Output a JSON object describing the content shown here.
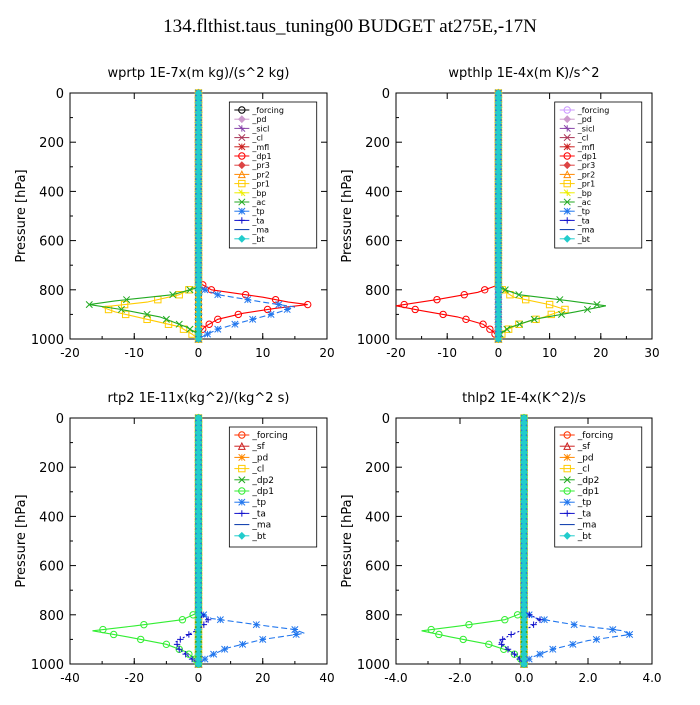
{
  "figure": {
    "title": "134.flthist.taus_tuning00  BUDGET at275E,-17N"
  },
  "chart_data": [
    {
      "type": "line",
      "title": "wprtp   1E-7x(m kg)/(s^2 kg)",
      "ylabel": "Pressure [hPa]",
      "xlim": [
        -20,
        20
      ],
      "ylim": [
        1000,
        0
      ],
      "xticks": [
        -20,
        -10,
        0,
        10,
        20
      ],
      "xtick_labels": [
        "-20",
        "-10",
        "0",
        "10",
        "20"
      ],
      "yticks": [
        0,
        200,
        400,
        600,
        800,
        1000
      ],
      "ytick_labels": [
        "0",
        "200",
        "400",
        "600",
        "800",
        "1000"
      ],
      "legend": "top-right",
      "legend_entries": [
        "_forcing",
        "_pd",
        "_sicl",
        "_cl",
        "_mfl",
        "_dp1",
        "_pr3",
        "_pr2",
        "_pr1",
        "_bp",
        "_ac",
        "_tp",
        "_ta",
        "_ma",
        "_bt"
      ],
      "series": [
        {
          "name": "_forcing",
          "color": "#000000",
          "marker": "circle",
          "y": [
            0,
            1000
          ],
          "x": [
            0,
            0
          ]
        },
        {
          "name": "_pd",
          "color": "#cc99cc",
          "marker": "diamond",
          "y": [
            0,
            1000
          ],
          "x": [
            0,
            0
          ]
        },
        {
          "name": "_sicl",
          "color": "#8844aa",
          "marker": "cross",
          "y": [
            0,
            1000
          ],
          "x": [
            0,
            0
          ]
        },
        {
          "name": "_cl",
          "color": "#aa3355",
          "marker": "x",
          "y": [
            0,
            1000
          ],
          "x": [
            0,
            0
          ]
        },
        {
          "name": "_mfl",
          "color": "#cc2222",
          "marker": "star",
          "y": [
            0,
            1000
          ],
          "x": [
            0,
            0
          ]
        },
        {
          "name": "_dp1",
          "color": "#ff0000",
          "marker": "circle",
          "y": [
            0,
            770,
            800,
            830,
            850,
            860,
            875,
            895,
            920,
            950,
            980,
            1000
          ],
          "x": [
            0,
            0,
            2,
            10,
            14,
            17,
            12,
            7,
            3,
            1,
            0,
            0
          ]
        },
        {
          "name": "_pr3",
          "color": "#dd4444",
          "marker": "diamond",
          "y": [
            0,
            1000
          ],
          "x": [
            0,
            0
          ]
        },
        {
          "name": "_pr2",
          "color": "#ff8800",
          "marker": "triangle",
          "y": [
            0,
            1000
          ],
          "x": [
            0,
            0
          ]
        },
        {
          "name": "_pr1",
          "color": "#ffcc00",
          "marker": "square",
          "y": [
            0,
            780,
            820,
            850,
            870,
            890,
            920,
            950,
            980,
            1000
          ],
          "x": [
            0,
            0,
            -3,
            -8,
            -15,
            -13,
            -8,
            -3,
            -1,
            0
          ]
        },
        {
          "name": "_bp",
          "color": "#eeee00",
          "marker": "cross",
          "y": [
            0,
            1000
          ],
          "x": [
            0,
            0
          ]
        },
        {
          "name": "_ac",
          "color": "#22aa22",
          "marker": "x",
          "y": [
            0,
            790,
            820,
            845,
            860,
            880,
            910,
            950,
            980,
            1000
          ],
          "x": [
            0,
            0,
            -4,
            -13,
            -17,
            -12,
            -6,
            -2,
            0,
            0
          ]
        },
        {
          "name": "_tp",
          "color": "#2277ee",
          "marker": "star",
          "y": [
            0,
            790,
            820,
            850,
            870,
            895,
            930,
            960,
            985,
            1000
          ],
          "x": [
            0,
            0,
            3,
            10,
            15,
            12,
            7,
            3,
            1,
            0
          ]
        },
        {
          "name": "_ta",
          "color": "#1111cc",
          "marker": "plus",
          "y": [
            0,
            1000
          ],
          "x": [
            0,
            0
          ]
        },
        {
          "name": "_ma",
          "color": "#0033aa",
          "marker": "none",
          "y": [
            0,
            1000
          ],
          "x": [
            0,
            0
          ]
        },
        {
          "name": "_bt",
          "color": "#22cccc",
          "marker": "diamond",
          "y": [
            0,
            1000
          ],
          "x": [
            0,
            0
          ]
        }
      ]
    },
    {
      "type": "line",
      "title": "wpthlp   1E-4x(m K)/s^2",
      "ylabel": "Pressure [hPa]",
      "xlim": [
        -20,
        30
      ],
      "ylim": [
        1000,
        0
      ],
      "xticks": [
        -20,
        -10,
        0,
        10,
        20,
        30
      ],
      "xtick_labels": [
        "-20",
        "-10",
        "0",
        "10",
        "20",
        "30"
      ],
      "yticks": [
        0,
        200,
        400,
        600,
        800,
        1000
      ],
      "ytick_labels": [
        "0",
        "200",
        "400",
        "600",
        "800",
        "1000"
      ],
      "legend": "top-right",
      "legend_entries": [
        "_forcing",
        "_pd",
        "_sicl",
        "_cl",
        "_mfl",
        "_dp1",
        "_pr3",
        "_pr2",
        "_pr1",
        "_bp",
        "_ac",
        "_tp",
        "_ta",
        "_ma",
        "_bt"
      ],
      "series": [
        {
          "name": "_forcing",
          "color": "#cc99ff",
          "marker": "circle",
          "y": [
            0,
            1000
          ],
          "x": [
            0,
            0
          ]
        },
        {
          "name": "_pd",
          "color": "#cc99cc",
          "marker": "diamond",
          "y": [
            0,
            1000
          ],
          "x": [
            0,
            0
          ]
        },
        {
          "name": "_sicl",
          "color": "#8844aa",
          "marker": "cross",
          "y": [
            0,
            1000
          ],
          "x": [
            0,
            0
          ]
        },
        {
          "name": "_cl",
          "color": "#aa3355",
          "marker": "x",
          "y": [
            0,
            1000
          ],
          "x": [
            0,
            0
          ]
        },
        {
          "name": "_mfl",
          "color": "#cc2222",
          "marker": "star",
          "y": [
            0,
            1000
          ],
          "x": [
            0,
            0
          ]
        },
        {
          "name": "_dp1",
          "color": "#ff0000",
          "marker": "circle",
          "y": [
            0,
            780,
            810,
            840,
            865,
            885,
            910,
            940,
            970,
            1000
          ],
          "x": [
            0,
            0,
            -4,
            -12,
            -20,
            -15,
            -8,
            -3,
            -1,
            0
          ]
        },
        {
          "name": "_pr3",
          "color": "#dd4444",
          "marker": "diamond",
          "y": [
            0,
            1000
          ],
          "x": [
            0,
            0
          ]
        },
        {
          "name": "_pr2",
          "color": "#ff8800",
          "marker": "triangle",
          "y": [
            0,
            1000
          ],
          "x": [
            0,
            0
          ]
        },
        {
          "name": "_pr1",
          "color": "#ffcc00",
          "marker": "square",
          "y": [
            0,
            790,
            830,
            860,
            880,
            910,
            940,
            970,
            1000
          ],
          "x": [
            0,
            0,
            3,
            10,
            13,
            9,
            4,
            1,
            0
          ]
        },
        {
          "name": "_bp",
          "color": "#eeee00",
          "marker": "cross",
          "y": [
            0,
            1000
          ],
          "x": [
            0,
            0
          ]
        },
        {
          "name": "_ac",
          "color": "#22aa22",
          "marker": "x",
          "y": [
            0,
            790,
            820,
            845,
            865,
            890,
            920,
            955,
            985,
            1000
          ],
          "x": [
            0,
            0,
            4,
            14,
            21,
            15,
            7,
            2,
            0,
            0
          ]
        },
        {
          "name": "_tp",
          "color": "#2277ee",
          "marker": "star",
          "y": [
            0,
            1000
          ],
          "x": [
            0,
            0
          ]
        },
        {
          "name": "_ta",
          "color": "#1111cc",
          "marker": "plus",
          "y": [
            0,
            1000
          ],
          "x": [
            0,
            0
          ]
        },
        {
          "name": "_ma",
          "color": "#0033aa",
          "marker": "none",
          "y": [
            0,
            1000
          ],
          "x": [
            0,
            0
          ]
        },
        {
          "name": "_bt",
          "color": "#22cccc",
          "marker": "diamond",
          "y": [
            0,
            1000
          ],
          "x": [
            0,
            0
          ]
        }
      ]
    },
    {
      "type": "line",
      "title": "rtp2   1E-11x(kg^2)/(kg^2 s)",
      "ylabel": "Pressure [hPa]",
      "xlim": [
        -40,
        40
      ],
      "ylim": [
        1000,
        0
      ],
      "xticks": [
        -40,
        -20,
        0,
        20,
        40
      ],
      "xtick_labels": [
        "-40",
        "-20",
        "0",
        "20",
        "40"
      ],
      "yticks": [
        0,
        200,
        400,
        600,
        800,
        1000
      ],
      "ytick_labels": [
        "0",
        "200",
        "400",
        "600",
        "800",
        "1000"
      ],
      "legend": "top-right",
      "legend_entries": [
        "_forcing",
        "_sf",
        "_pd",
        "_cl",
        "_dp2",
        "_dp1",
        "_tp",
        "_ta",
        "_ma",
        "_bt"
      ],
      "series": [
        {
          "name": "_forcing",
          "color": "#ff3300",
          "marker": "circle",
          "y": [
            0,
            1000
          ],
          "x": [
            0,
            0
          ]
        },
        {
          "name": "_sf",
          "color": "#cc2222",
          "marker": "triangle",
          "y": [
            0,
            1000
          ],
          "x": [
            0,
            0
          ]
        },
        {
          "name": "_pd",
          "color": "#ff8800",
          "marker": "star",
          "y": [
            0,
            1000
          ],
          "x": [
            0,
            0
          ]
        },
        {
          "name": "_cl",
          "color": "#ffcc00",
          "marker": "square",
          "y": [
            0,
            1000
          ],
          "x": [
            0,
            0
          ]
        },
        {
          "name": "_dp2",
          "color": "#22aa22",
          "marker": "x",
          "y": [
            0,
            1000
          ],
          "x": [
            0,
            0
          ]
        },
        {
          "name": "_dp1",
          "color": "#33ee33",
          "marker": "circle",
          "y": [
            0,
            790,
            820,
            845,
            865,
            890,
            920,
            950,
            980,
            1000
          ],
          "x": [
            0,
            0,
            -5,
            -20,
            -33,
            -22,
            -10,
            -4,
            -1,
            0
          ]
        },
        {
          "name": "_tp",
          "color": "#2277ee",
          "marker": "star",
          "y": [
            0,
            790,
            815,
            840,
            860,
            875,
            900,
            935,
            970,
            1000
          ],
          "x": [
            0,
            0,
            4,
            18,
            30,
            33,
            20,
            9,
            3,
            0
          ]
        },
        {
          "name": "_ta",
          "color": "#1111cc",
          "marker": "plus",
          "y": [
            0,
            790,
            820,
            850,
            880,
            910,
            940,
            970,
            1000
          ],
          "x": [
            0,
            0,
            3,
            1,
            -3,
            -7,
            -6,
            -3,
            0
          ]
        },
        {
          "name": "_ma",
          "color": "#0033aa",
          "marker": "none",
          "y": [
            0,
            1000
          ],
          "x": [
            0,
            0
          ]
        },
        {
          "name": "_bt",
          "color": "#22cccc",
          "marker": "diamond",
          "y": [
            0,
            1000
          ],
          "x": [
            0,
            0
          ]
        }
      ]
    },
    {
      "type": "line",
      "title": "thlp2   1E-4x(K^2)/s",
      "ylabel": "Pressure [hPa]",
      "xlim": [
        -4,
        4
      ],
      "ylim": [
        1000,
        0
      ],
      "xticks": [
        -4,
        -2,
        0,
        2,
        4
      ],
      "xtick_labels": [
        "-4.0",
        "-2.0",
        "0.0",
        "2.0",
        "4.0"
      ],
      "yticks": [
        0,
        200,
        400,
        600,
        800,
        1000
      ],
      "ytick_labels": [
        "0",
        "200",
        "400",
        "600",
        "800",
        "1000"
      ],
      "legend": "top-right",
      "legend_entries": [
        "_forcing",
        "_sf",
        "_pd",
        "_cl",
        "_dp2",
        "_dp1",
        "_tp",
        "_ta",
        "_ma",
        "_bt"
      ],
      "series": [
        {
          "name": "_forcing",
          "color": "#ff3300",
          "marker": "circle",
          "y": [
            0,
            1000
          ],
          "x": [
            0,
            0
          ]
        },
        {
          "name": "_sf",
          "color": "#cc2222",
          "marker": "triangle",
          "y": [
            0,
            1000
          ],
          "x": [
            0,
            0
          ]
        },
        {
          "name": "_pd",
          "color": "#ff8800",
          "marker": "star",
          "y": [
            0,
            1000
          ],
          "x": [
            0,
            0
          ]
        },
        {
          "name": "_cl",
          "color": "#ffcc00",
          "marker": "square",
          "y": [
            0,
            1000
          ],
          "x": [
            0,
            0
          ]
        },
        {
          "name": "_dp2",
          "color": "#22aa22",
          "marker": "x",
          "y": [
            0,
            1000
          ],
          "x": [
            0,
            0
          ]
        },
        {
          "name": "_dp1",
          "color": "#33ee33",
          "marker": "circle",
          "y": [
            0,
            790,
            820,
            845,
            865,
            890,
            920,
            950,
            980,
            1000
          ],
          "x": [
            0,
            0,
            -0.6,
            -2,
            -3.2,
            -2.3,
            -1.1,
            -0.4,
            -0.1,
            0
          ]
        },
        {
          "name": "_tp",
          "color": "#2277ee",
          "marker": "star",
          "y": [
            0,
            790,
            815,
            845,
            865,
            880,
            905,
            940,
            975,
            1000
          ],
          "x": [
            0,
            0,
            0.4,
            1.8,
            3.1,
            3.3,
            2.0,
            0.9,
            0.2,
            0
          ]
        },
        {
          "name": "_ta",
          "color": "#1111cc",
          "marker": "plus",
          "y": [
            0,
            790,
            820,
            850,
            880,
            910,
            940,
            970,
            1000
          ],
          "x": [
            0,
            0,
            0.5,
            0.2,
            -0.4,
            -0.8,
            -0.5,
            -0.2,
            0
          ]
        },
        {
          "name": "_ma",
          "color": "#0033aa",
          "marker": "none",
          "y": [
            0,
            1000
          ],
          "x": [
            0,
            0
          ]
        },
        {
          "name": "_bt",
          "color": "#22cccc",
          "marker": "diamond",
          "y": [
            0,
            1000
          ],
          "x": [
            0,
            0
          ]
        }
      ]
    }
  ]
}
